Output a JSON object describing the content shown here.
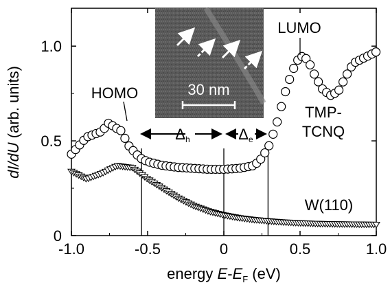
{
  "chart_data": {
    "type": "scatter",
    "xlabel": "energy E-E_F (eV)",
    "xlabel_parts": {
      "prefix": "energy ",
      "var": "E",
      "sep": "-",
      "var2": "E",
      "sub": "F",
      "suffix": " (eV)"
    },
    "ylabel": "dI/dU (arb. units)",
    "ylabel_parts": {
      "var": "dI/dU",
      "suffix": " (arb. units)"
    },
    "xlim": [
      -1.0,
      1.0
    ],
    "ylim": [
      0,
      1.2
    ],
    "xticks": [
      -1.0,
      -0.5,
      0,
      0.5,
      1.0
    ],
    "xtick_labels": [
      "-1.0",
      "-0.5",
      "0",
      "0.5",
      "1.0"
    ],
    "yticks": [
      0,
      0.5,
      1.0
    ],
    "ytick_labels": [
      "0",
      "0.5",
      "1.0"
    ],
    "grid": false,
    "series": [
      {
        "name": "TMP-TCNQ",
        "marker": "circle",
        "x": [
          -1.0,
          -0.9,
          -0.8,
          -0.75,
          -0.72,
          -0.68,
          -0.62,
          -0.55,
          -0.5,
          -0.4,
          -0.3,
          -0.2,
          -0.1,
          0.0,
          0.1,
          0.2,
          0.25,
          0.3,
          0.35,
          0.4,
          0.45,
          0.5,
          0.55,
          0.6,
          0.65,
          0.7,
          0.75,
          0.8,
          0.85,
          0.9,
          0.95,
          1.0
        ],
        "y": [
          0.43,
          0.52,
          0.55,
          0.6,
          0.57,
          0.56,
          0.47,
          0.41,
          0.39,
          0.37,
          0.36,
          0.355,
          0.35,
          0.35,
          0.355,
          0.37,
          0.41,
          0.48,
          0.6,
          0.75,
          0.87,
          0.95,
          0.93,
          0.84,
          0.77,
          0.74,
          0.76,
          0.84,
          0.91,
          0.93,
          0.95,
          0.97
        ]
      },
      {
        "name": "W(110)",
        "marker": "triangle-down",
        "x": [
          -1.0,
          -0.9,
          -0.8,
          -0.7,
          -0.6,
          -0.5,
          -0.4,
          -0.3,
          -0.2,
          -0.1,
          0.0,
          0.1,
          0.2,
          0.3,
          0.4,
          0.5,
          0.6,
          0.7,
          0.8,
          0.9,
          1.0
        ],
        "y": [
          0.34,
          0.3,
          0.33,
          0.37,
          0.36,
          0.3,
          0.25,
          0.2,
          0.16,
          0.13,
          0.11,
          0.095,
          0.085,
          0.078,
          0.072,
          0.068,
          0.065,
          0.063,
          0.062,
          0.061,
          0.06
        ]
      }
    ],
    "vlines": [
      -0.54,
      0,
      0.29
    ],
    "annotations": {
      "homo": "HOMO",
      "lumo": "LUMO",
      "tmp_line1": "TMP-",
      "tmp_line2": "TCNQ",
      "w110": "W(110)",
      "delta_h": "Δ",
      "delta_h_sub": "h",
      "delta_e": "Δ",
      "delta_e_sub": "e",
      "scalebar": "30 nm"
    }
  }
}
